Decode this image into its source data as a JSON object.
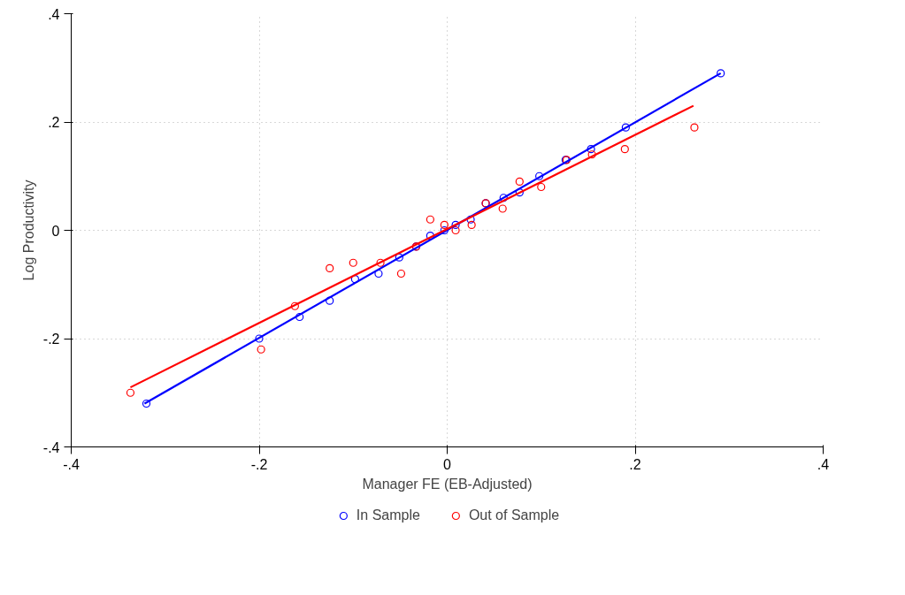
{
  "chart_data": {
    "type": "scatter",
    "xlabel": "Manager FE (EB-Adjusted)",
    "ylabel": "Log Productivity",
    "xlim": [
      -0.4,
      0.4
    ],
    "ylim": [
      -0.4,
      0.4
    ],
    "xticks": [
      {
        "value": -0.4,
        "label": "-.4"
      },
      {
        "value": -0.2,
        "label": "-.2"
      },
      0,
      {
        "value": 0.2,
        "label": ".2"
      },
      {
        "value": 0.4,
        "label": ".4"
      }
    ],
    "yticks": [
      {
        "value": -0.4,
        "label": "-.4"
      },
      {
        "value": -0.2,
        "label": "-.2"
      },
      0,
      {
        "value": 0.2,
        "label": ".2"
      },
      {
        "value": 0.4,
        "label": ".4"
      }
    ],
    "grid": true,
    "legend": "bottom",
    "series": [
      {
        "name": "In Sample",
        "color": "#0000ff",
        "marker": "circle",
        "x": [
          -0.32,
          -0.2,
          -0.157,
          -0.125,
          -0.098,
          -0.073,
          -0.051,
          -0.033,
          -0.018,
          -0.003,
          0.009,
          0.025,
          0.041,
          0.06,
          0.077,
          0.098,
          0.126,
          0.153,
          0.19,
          0.291
        ],
        "values": [
          -0.32,
          -0.2,
          -0.16,
          -0.13,
          -0.09,
          -0.08,
          -0.05,
          -0.03,
          -0.01,
          0.0,
          0.01,
          0.02,
          0.05,
          0.06,
          0.07,
          0.1,
          0.13,
          0.15,
          0.19,
          0.29
        ]
      },
      {
        "name": "Out of Sample",
        "color": "#ff0000",
        "marker": "circle",
        "x": [
          -0.337,
          -0.198,
          -0.162,
          -0.125,
          -0.1,
          -0.071,
          -0.049,
          -0.033,
          -0.018,
          -0.003,
          0.009,
          0.026,
          0.041,
          0.059,
          0.077,
          0.1,
          0.127,
          0.154,
          0.189,
          0.263
        ],
        "values": [
          -0.3,
          -0.22,
          -0.14,
          -0.07,
          -0.06,
          -0.06,
          -0.08,
          -0.03,
          0.02,
          0.01,
          0.0,
          0.01,
          0.05,
          0.04,
          0.09,
          0.08,
          0.13,
          0.14,
          0.15,
          0.19
        ]
      },
      {
        "type": "line",
        "color": "#0000ff",
        "line_style": "solid",
        "x": [
          -0.322,
          0.291
        ],
        "values": [
          -0.32,
          0.29
        ]
      },
      {
        "type": "line",
        "color": "#ff0000",
        "line_style": "solid",
        "x": [
          -0.337,
          0.262
        ],
        "values": [
          -0.29,
          0.23
        ]
      }
    ]
  }
}
